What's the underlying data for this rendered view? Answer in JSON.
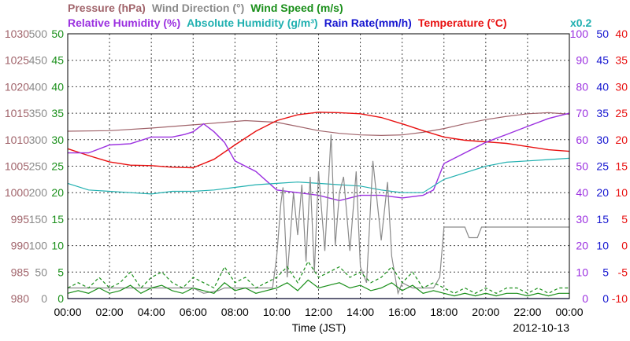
{
  "chart_data": {
    "type": "line",
    "header": {
      "line1": [
        {
          "key": "pressure",
          "text": "Pressure (hPa)",
          "color": "#a0636a"
        },
        {
          "key": "wind_direction",
          "text": "Wind Direction (°)",
          "color": "#8a8a8a"
        },
        {
          "key": "wind_speed",
          "text": "Wind Speed (m/s)",
          "color": "#1a8f1a"
        }
      ],
      "line2": [
        {
          "key": "relative_humidity",
          "text": "Relative Humidity (%)",
          "color": "#9b30e0"
        },
        {
          "key": "absolute_humidity",
          "text": "Absolute Humidity (g/m³)",
          "color": "#20b0b0"
        },
        {
          "key": "rain_rate",
          "text": "Rain Rate(mm/h)",
          "color": "#1515d0"
        },
        {
          "key": "temperature",
          "text": "Temperature (°C)",
          "color": "#e81010"
        }
      ],
      "scale_note": {
        "text": "x0.2",
        "color": "#20b0b0"
      }
    },
    "xlabel": "Time (JST)",
    "date": "2012-10-13",
    "x_ticks": [
      "00:00",
      "02:00",
      "04:00",
      "06:00",
      "08:00",
      "10:00",
      "12:00",
      "14:00",
      "16:00",
      "18:00",
      "20:00",
      "22:00",
      "00:00"
    ],
    "xlim": [
      0,
      24
    ],
    "axes": [
      {
        "key": "pressure",
        "side": "left",
        "min": 980,
        "max": 1030,
        "ticks": [
          "980",
          "985",
          "990",
          "995",
          "1000",
          "1005",
          "1010",
          "1015",
          "1020",
          "1025",
          "1030"
        ],
        "color": "#a0636a"
      },
      {
        "key": "wind_direction",
        "side": "left",
        "min": 0,
        "max": 500,
        "ticks": [
          "0",
          "50",
          "100",
          "150",
          "200",
          "250",
          "300",
          "350",
          "400",
          "450",
          "500"
        ],
        "color": "#8a8a8a"
      },
      {
        "key": "wind_speed",
        "side": "left",
        "min": 0,
        "max": 50,
        "ticks": [
          "0",
          "5",
          "10",
          "15",
          "20",
          "25",
          "30",
          "35",
          "40",
          "45",
          "50"
        ],
        "color": "#1a8f1a"
      },
      {
        "key": "relative_humidity",
        "side": "right",
        "min": 0,
        "max": 100,
        "ticks": [
          "0",
          "10",
          "20",
          "30",
          "40",
          "50",
          "60",
          "70",
          "80",
          "90",
          "100"
        ],
        "color": "#9b30e0"
      },
      {
        "key": "rain_rate",
        "side": "right",
        "min": 0,
        "max": 50,
        "ticks": [
          "0",
          "5",
          "10",
          "15",
          "20",
          "25",
          "30",
          "35",
          "40",
          "45",
          "50"
        ],
        "color": "#1515d0"
      },
      {
        "key": "temperature",
        "side": "right",
        "min": -10,
        "max": 40,
        "ticks": [
          "-10",
          "-5",
          "0",
          "5",
          "10",
          "15",
          "20",
          "25",
          "30",
          "35",
          "40"
        ],
        "color": "#e81010"
      }
    ],
    "grid": true,
    "series": [
      {
        "key": "pressure",
        "axis": "pressure",
        "color": "#a0636a",
        "style": "solid",
        "x": [
          0,
          2,
          4,
          6,
          7.5,
          8.5,
          10,
          11,
          12,
          13,
          14,
          15,
          16,
          17,
          18,
          19,
          20,
          21,
          22,
          23,
          24
        ],
        "y": [
          1011.6,
          1011.7,
          1012.2,
          1012.8,
          1013.3,
          1013.6,
          1013.3,
          1012.5,
          1011.7,
          1011.2,
          1010.9,
          1010.8,
          1010.9,
          1011.4,
          1012.1,
          1013.0,
          1013.8,
          1014.4,
          1014.9,
          1015.1,
          1014.8
        ]
      },
      {
        "key": "temperature",
        "axis": "temperature",
        "color": "#e81010",
        "style": "solid",
        "x": [
          0,
          1,
          2,
          3,
          4,
          5,
          6,
          7,
          8,
          9,
          10,
          11,
          12,
          13,
          14,
          15,
          16,
          17,
          18,
          19,
          20,
          21,
          22,
          23,
          24
        ],
        "y": [
          18.3,
          17.0,
          15.8,
          15.2,
          15.1,
          14.8,
          14.7,
          16.3,
          19.0,
          21.6,
          23.6,
          24.7,
          25.2,
          25.1,
          24.9,
          24.2,
          23.0,
          21.7,
          20.5,
          19.9,
          19.6,
          19.3,
          18.7,
          18.1,
          17.8
        ]
      },
      {
        "key": "relative_humidity",
        "axis": "relative_humidity",
        "color": "#9b30e0",
        "style": "solid",
        "x": [
          0,
          1,
          2,
          3,
          4,
          5,
          5.6,
          6,
          6.5,
          7,
          7.5,
          8,
          9,
          10,
          11,
          12,
          13,
          14,
          15,
          16,
          17,
          17.5,
          18,
          19,
          20,
          21,
          22,
          23,
          24
        ],
        "y": [
          55,
          55,
          58,
          58.5,
          61,
          61,
          62,
          63,
          66,
          63,
          59,
          52,
          48,
          41,
          40,
          39,
          37,
          39,
          39,
          38,
          39,
          41,
          51,
          55,
          59,
          62,
          65,
          68,
          70
        ]
      },
      {
        "key": "absolute_humidity",
        "axis": "relative_humidity",
        "color": "#20b0b0",
        "style": "solid",
        "x": [
          0,
          1,
          2,
          3,
          4,
          5,
          6,
          7,
          8,
          9,
          10,
          11,
          12,
          13,
          14,
          15,
          16,
          17,
          18,
          19,
          20,
          21,
          22,
          23,
          24
        ],
        "y": [
          43.5,
          41,
          40.5,
          40,
          39.5,
          40.5,
          40.5,
          41,
          42,
          43,
          43.5,
          44,
          43.5,
          43,
          42.5,
          41,
          40,
          40,
          45,
          47.5,
          50,
          51.5,
          52,
          52.5,
          53
        ]
      },
      {
        "key": "wind_direction",
        "axis": "wind_direction",
        "color": "#8a8a8a",
        "style": "solid",
        "x": [
          0,
          4,
          6,
          6.5,
          7.2,
          7.5,
          8,
          8.5,
          9,
          9.5,
          9.8,
          10,
          10.2,
          10.3,
          10.5,
          10.8,
          11.0,
          11.2,
          11.4,
          11.6,
          11.8,
          12.0,
          12.3,
          12.6,
          12.8,
          13.0,
          13.2,
          13.5,
          13.8,
          14.0,
          14.3,
          14.6,
          15.0,
          15.3,
          15.5,
          15.8,
          16.0,
          16.5,
          17,
          17.5,
          17.8,
          18,
          18.5,
          19,
          19.2,
          19.4,
          19.6,
          19.8,
          20,
          21,
          22,
          23,
          24
        ],
        "y": [
          20,
          20,
          20,
          10,
          15,
          20,
          20,
          20,
          20,
          20,
          20,
          80,
          180,
          210,
          40,
          200,
          120,
          215,
          70,
          230,
          50,
          240,
          90,
          310,
          100,
          200,
          230,
          90,
          240,
          60,
          30,
          260,
          110,
          220,
          80,
          10,
          30,
          20,
          20,
          20,
          40,
          135,
          135,
          135,
          115,
          115,
          115,
          135,
          135,
          135,
          135,
          135,
          135
        ]
      },
      {
        "key": "wind_speed_max",
        "axis": "wind_speed",
        "color": "#1a8f1a",
        "style": "dashed",
        "x": [
          0,
          0.5,
          1,
          1.5,
          2,
          2.5,
          3,
          3.5,
          4,
          4.5,
          5,
          5.5,
          6,
          6.5,
          7,
          7.5,
          8,
          8.5,
          9,
          9.5,
          10,
          10.5,
          11,
          11.5,
          12,
          12.5,
          13,
          13.5,
          14,
          14.5,
          15,
          15.5,
          16,
          16.5,
          17,
          17.5,
          18,
          18.5,
          19,
          19.5,
          20,
          20.5,
          21,
          21.5,
          22,
          22.5,
          23,
          23.5,
          24
        ],
        "y": [
          2,
          3,
          2,
          4,
          2,
          3,
          5,
          2,
          4,
          5,
          3,
          2,
          4,
          3,
          2,
          6,
          3,
          4,
          2,
          3,
          4,
          6,
          3,
          7,
          4,
          5,
          6,
          4,
          5,
          3,
          4,
          6,
          3,
          5,
          2,
          3,
          2,
          1,
          2,
          1,
          2,
          1,
          2,
          2,
          1,
          2,
          1,
          2,
          2
        ]
      },
      {
        "key": "wind_speed",
        "axis": "wind_speed",
        "color": "#1a8f1a",
        "style": "solid",
        "x": [
          0,
          0.5,
          1,
          1.5,
          2,
          2.5,
          3,
          3.5,
          4,
          4.5,
          5,
          5.5,
          6,
          6.5,
          7,
          7.5,
          8,
          8.5,
          9,
          9.5,
          10,
          10.5,
          11,
          11.5,
          12,
          12.5,
          13,
          13.5,
          14,
          14.5,
          15,
          15.5,
          16,
          16.5,
          17,
          17.5,
          18,
          18.5,
          19,
          19.5,
          20,
          20.5,
          21,
          21.5,
          22,
          22.5,
          23,
          23.5,
          24
        ],
        "y": [
          1,
          1.5,
          1,
          2,
          1,
          1.5,
          2.5,
          1,
          2,
          2.5,
          1.5,
          1,
          2,
          1.5,
          1,
          3,
          1.5,
          2,
          1,
          1.5,
          2,
          3,
          1.5,
          3.5,
          2,
          2.5,
          3,
          2,
          2.5,
          1.5,
          2,
          3,
          1.5,
          2.5,
          1,
          1.5,
          1,
          0.5,
          1,
          0.5,
          1,
          0.5,
          1,
          1,
          0.5,
          1,
          0.5,
          1,
          1
        ]
      },
      {
        "key": "rain_rate",
        "axis": "rain_rate",
        "color": "#1515d0",
        "style": "solid",
        "x": [
          0,
          24
        ],
        "y": [
          0,
          0
        ]
      }
    ]
  }
}
